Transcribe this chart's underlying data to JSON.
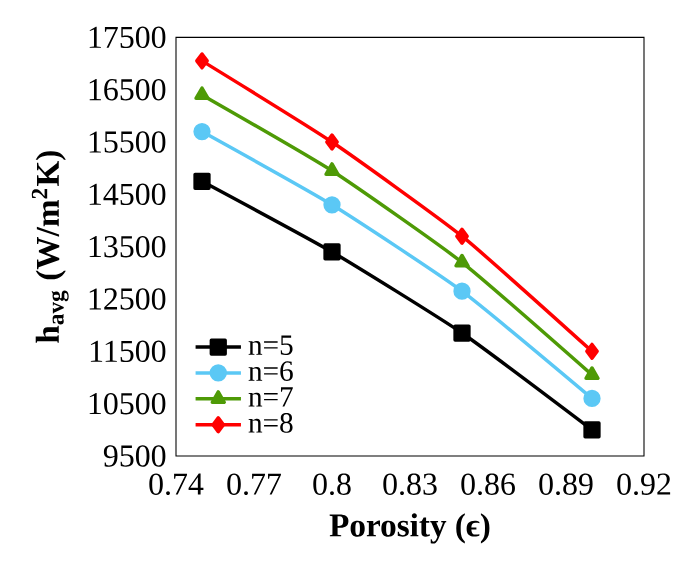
{
  "chart_data": {
    "type": "line",
    "xlabel": "**Porosity (ϵ)**",
    "ylabel": "**h$_{avg}$ (W/m$^{2}$K)**",
    "x": [
      0.75,
      0.8,
      0.85,
      0.9
    ],
    "series": [
      {
        "name": "n=5",
        "color": "#000000",
        "marker": "square",
        "values": [
          14750,
          13400,
          11850,
          10000
        ]
      },
      {
        "name": "n=6",
        "color": "#5bc8f5",
        "marker": "circle",
        "values": [
          15700,
          14300,
          12650,
          10600
        ]
      },
      {
        "name": "n=7",
        "color": "#4e9a06",
        "marker": "triangle",
        "values": [
          16400,
          14950,
          13200,
          11050
        ]
      },
      {
        "name": "n=8",
        "color": "#ff0000",
        "marker": "diamond",
        "values": [
          17050,
          15500,
          13700,
          11500
        ]
      }
    ],
    "xlim": [
      0.74,
      0.92
    ],
    "xticks": [
      0.74,
      0.77,
      0.8,
      0.83,
      0.86,
      0.89,
      0.92
    ],
    "ylim": [
      9500,
      17500
    ],
    "yticks": [
      9500,
      10500,
      11500,
      12500,
      13500,
      14500,
      15500,
      16500,
      17500
    ],
    "legend": "bottom left",
    "grid": false,
    "line_style": "solid"
  }
}
